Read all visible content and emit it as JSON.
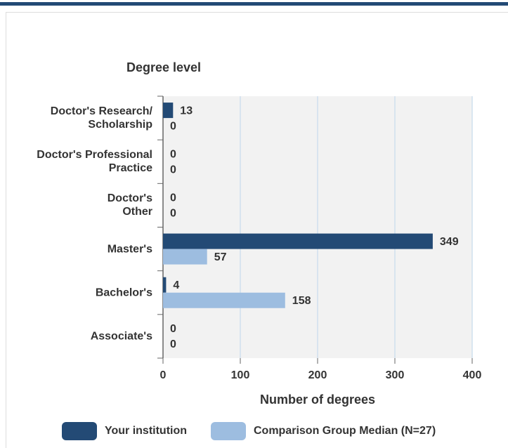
{
  "chart_data": {
    "type": "bar",
    "orientation": "horizontal",
    "y_axis_title": "Degree level",
    "x_axis_title": "Number of degrees",
    "categories": [
      "Doctor's Research/\nScholarship",
      "Doctor's Professional\nPractice",
      "Doctor's\nOther",
      "Master's",
      "Bachelor's",
      "Associate's"
    ],
    "series": [
      {
        "name": "Your institution",
        "color": "#234a75",
        "values": [
          13,
          0,
          0,
          349,
          4,
          0
        ]
      },
      {
        "name": "Comparison Group Median (N=27)",
        "color": "#9dbde0",
        "values": [
          0,
          0,
          0,
          57,
          158,
          0
        ]
      }
    ],
    "xlim": [
      0,
      400
    ],
    "xticks": [
      0,
      100,
      200,
      300,
      400
    ],
    "grid": true,
    "legend": "bottom"
  }
}
